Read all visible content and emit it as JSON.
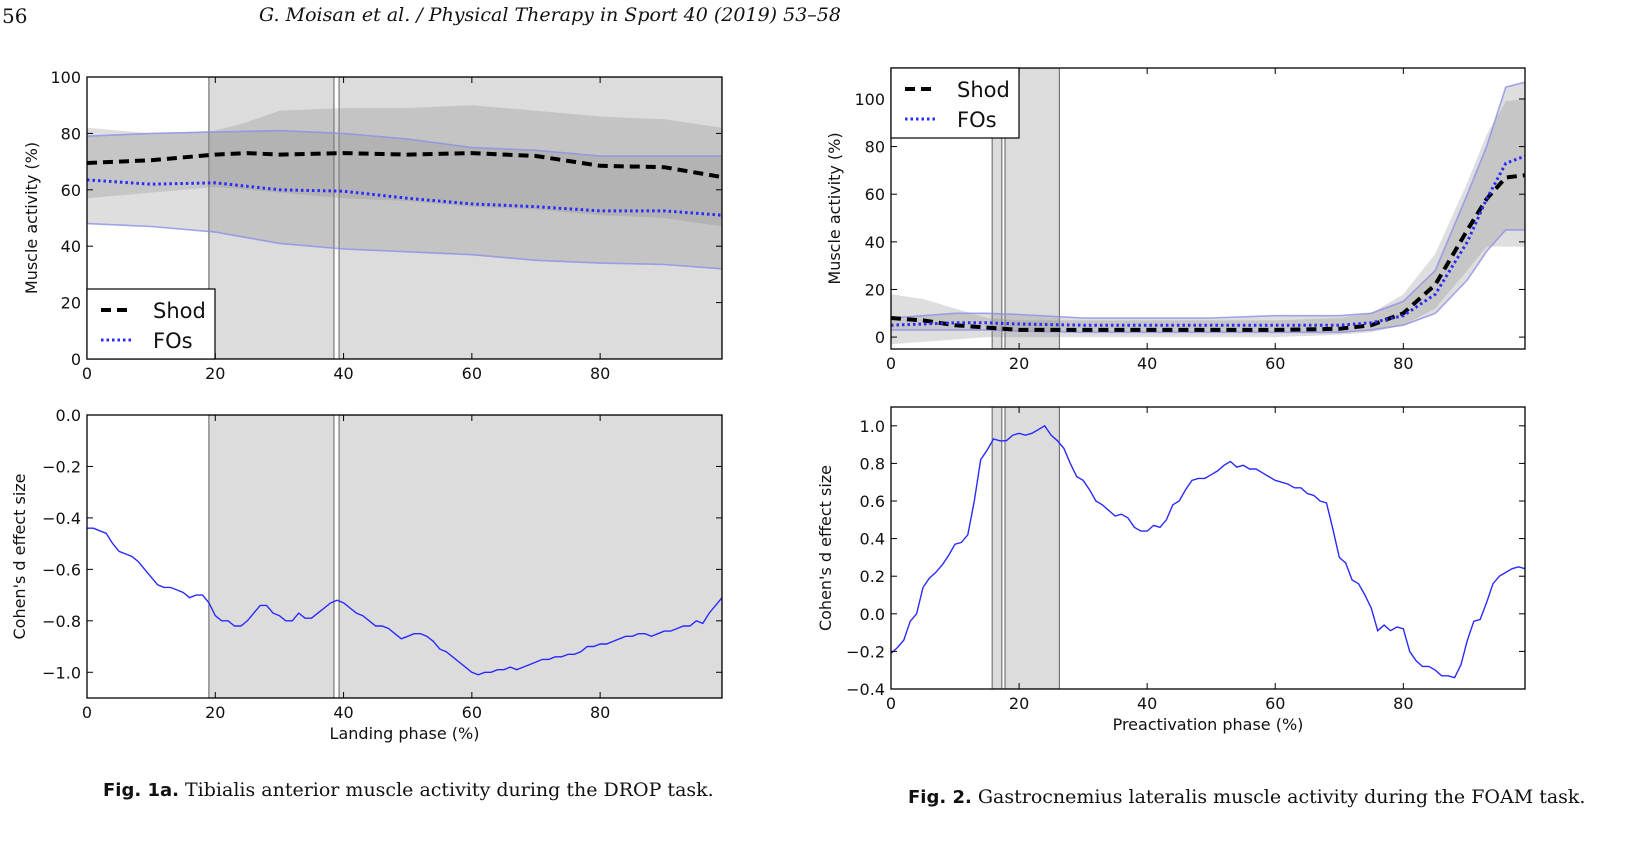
{
  "header": {
    "page_number": "56",
    "running_head": "G. Moisan et al. / Physical Therapy in Sport 40 (2019) 53–58"
  },
  "colors": {
    "shod": "#000000",
    "fos": "#2a2aff",
    "band": "#8a8a8a",
    "significance": "#9a9a9a"
  },
  "chart_data": [
    {
      "id": "fig1a-top",
      "type": "line",
      "ylabel": "Muscle activity (%)",
      "xlabel": "",
      "xlim": [
        0,
        99
      ],
      "ylim": [
        0,
        100
      ],
      "xticks": [
        0,
        20,
        40,
        60,
        80
      ],
      "yticks": [
        0,
        20,
        40,
        60,
        80,
        100
      ],
      "legend": {
        "position": "lower-left",
        "entries": [
          "Shod",
          "FOs"
        ]
      },
      "significance_regions": [
        [
          19,
          38.5
        ],
        [
          39.3,
          99
        ]
      ],
      "series": [
        {
          "name": "Shod",
          "style": "dashed",
          "x": [
            0,
            10,
            20,
            25,
            30,
            40,
            50,
            60,
            70,
            80,
            90,
            99
          ],
          "y": [
            69.5,
            70.5,
            72.5,
            73,
            72.5,
            73,
            72.5,
            73,
            72,
            68.5,
            68,
            64.5
          ],
          "lower": [
            57,
            59,
            61,
            60,
            59,
            57,
            56,
            54,
            53,
            51,
            50,
            47
          ],
          "upper": [
            82,
            80,
            81,
            84,
            88,
            89,
            89,
            90,
            88,
            86,
            85,
            82
          ]
        },
        {
          "name": "FOs",
          "style": "dotted",
          "x": [
            0,
            10,
            20,
            30,
            40,
            50,
            60,
            70,
            80,
            90,
            99
          ],
          "y": [
            63.5,
            62,
            62.5,
            60,
            59.5,
            57,
            55,
            54,
            52.5,
            52.5,
            51
          ],
          "lower": [
            48,
            47,
            45,
            41,
            39,
            38,
            37,
            35,
            34,
            33.5,
            32
          ],
          "upper": [
            79,
            80,
            80.5,
            81,
            80,
            78,
            75,
            74,
            72,
            72,
            72
          ]
        }
      ]
    },
    {
      "id": "fig1a-bottom",
      "type": "line",
      "ylabel": "Cohen's d effect size",
      "xlabel": "Landing phase (%)",
      "xlim": [
        0,
        99
      ],
      "ylim": [
        -1.1,
        0.0
      ],
      "xticks": [
        0,
        20,
        40,
        60,
        80
      ],
      "yticks": [
        0.0,
        -0.2,
        -0.4,
        -0.6,
        -0.8,
        -1.0
      ],
      "significance_regions": [
        [
          19,
          38.5
        ],
        [
          39.3,
          99
        ]
      ],
      "series": [
        {
          "name": "",
          "x": [
            0,
            1,
            2,
            3,
            4,
            5,
            6,
            7,
            8,
            9,
            10,
            11,
            12,
            13,
            14,
            15,
            16,
            17,
            18,
            19,
            20,
            21,
            22,
            23,
            24,
            25,
            26,
            27,
            28,
            29,
            30,
            31,
            32,
            33,
            34,
            35,
            36,
            37,
            38,
            39,
            40,
            41,
            42,
            43,
            44,
            45,
            46,
            47,
            48,
            49,
            50,
            51,
            52,
            53,
            54,
            55,
            56,
            57,
            58,
            59,
            60,
            61,
            62,
            63,
            64,
            65,
            66,
            67,
            68,
            69,
            70,
            71,
            72,
            73,
            74,
            75,
            76,
            77,
            78,
            79,
            80,
            81,
            82,
            83,
            84,
            85,
            86,
            87,
            88,
            89,
            90,
            91,
            92,
            93,
            94,
            95,
            96,
            97,
            98,
            99
          ],
          "y": [
            -0.44,
            -0.44,
            -0.45,
            -0.46,
            -0.5,
            -0.53,
            -0.54,
            -0.55,
            -0.57,
            -0.6,
            -0.63,
            -0.66,
            -0.67,
            -0.67,
            -0.68,
            -0.69,
            -0.71,
            -0.7,
            -0.7,
            -0.73,
            -0.78,
            -0.8,
            -0.8,
            -0.82,
            -0.82,
            -0.8,
            -0.77,
            -0.74,
            -0.74,
            -0.77,
            -0.78,
            -0.8,
            -0.8,
            -0.77,
            -0.79,
            -0.79,
            -0.77,
            -0.75,
            -0.73,
            -0.72,
            -0.73,
            -0.75,
            -0.77,
            -0.78,
            -0.8,
            -0.82,
            -0.82,
            -0.83,
            -0.85,
            -0.87,
            -0.86,
            -0.85,
            -0.85,
            -0.86,
            -0.88,
            -0.91,
            -0.92,
            -0.94,
            -0.96,
            -0.98,
            -1.0,
            -1.01,
            -1.0,
            -1.0,
            -0.99,
            -0.99,
            -0.98,
            -0.99,
            -0.98,
            -0.97,
            -0.96,
            -0.95,
            -0.95,
            -0.94,
            -0.94,
            -0.93,
            -0.93,
            -0.92,
            -0.9,
            -0.9,
            -0.89,
            -0.89,
            -0.88,
            -0.87,
            -0.86,
            -0.86,
            -0.85,
            -0.85,
            -0.86,
            -0.85,
            -0.84,
            -0.84,
            -0.83,
            -0.82,
            -0.82,
            -0.8,
            -0.81,
            -0.77,
            -0.74,
            -0.71
          ]
        }
      ]
    },
    {
      "id": "fig2-top",
      "type": "line",
      "ylabel": "Muscle activity (%)",
      "xlabel": "",
      "xlim": [
        0,
        99
      ],
      "ylim": [
        -5,
        113
      ],
      "xticks": [
        0,
        20,
        40,
        60,
        80
      ],
      "yticks": [
        0,
        20,
        40,
        60,
        80,
        100
      ],
      "legend": {
        "position": "top-left",
        "entries": [
          "Shod",
          "FOs"
        ]
      },
      "significance_regions": [
        [
          15.8,
          17.3
        ],
        [
          17.8,
          26.3
        ]
      ],
      "series": [
        {
          "name": "Shod",
          "style": "dashed",
          "x": [
            0,
            5,
            10,
            15,
            20,
            30,
            40,
            50,
            60,
            70,
            75,
            80,
            85,
            90,
            93,
            96,
            99
          ],
          "y": [
            8,
            7,
            5,
            4,
            3,
            3,
            3,
            3,
            3,
            3.5,
            5,
            10,
            22,
            45,
            58,
            67,
            68
          ],
          "lower": [
            -3,
            -2,
            -1,
            0,
            0,
            0,
            0,
            0,
            0,
            1,
            2,
            5,
            12,
            28,
            38,
            38,
            38
          ],
          "upper": [
            18,
            16,
            12,
            8,
            7,
            7,
            7,
            7,
            7,
            8,
            10,
            18,
            35,
            65,
            85,
            99,
            100
          ]
        },
        {
          "name": "FOs",
          "style": "dotted",
          "x": [
            0,
            5,
            10,
            15,
            20,
            30,
            40,
            50,
            60,
            70,
            75,
            80,
            85,
            90,
            93,
            96,
            99
          ],
          "y": [
            5,
            5.5,
            6,
            6,
            5.5,
            5,
            5,
            5,
            5,
            5,
            6,
            9,
            18,
            40,
            58,
            73,
            76
          ],
          "lower": [
            3,
            3,
            3,
            3,
            2.5,
            2,
            2,
            2,
            2,
            2,
            3,
            5,
            10,
            24,
            36,
            45,
            45
          ],
          "upper": [
            8,
            9,
            10,
            10,
            9.5,
            8,
            8,
            8,
            9,
            9,
            10,
            15,
            28,
            60,
            80,
            105,
            107
          ]
        }
      ]
    },
    {
      "id": "fig2-bottom",
      "type": "line",
      "ylabel": "Cohen's d effect size",
      "xlabel": "Preactivation phase (%)",
      "xlim": [
        0,
        99
      ],
      "ylim": [
        -0.4,
        1.1
      ],
      "xticks": [
        0,
        20,
        40,
        60,
        80
      ],
      "yticks": [
        1.0,
        0.8,
        0.6,
        0.4,
        0.2,
        0.0,
        -0.2,
        -0.4
      ],
      "significance_regions": [
        [
          15.8,
          17.3
        ],
        [
          17.8,
          26.3
        ]
      ],
      "series": [
        {
          "name": "",
          "x": [
            0,
            1,
            2,
            3,
            4,
            5,
            6,
            7,
            8,
            9,
            10,
            11,
            12,
            13,
            14,
            15,
            16,
            17,
            18,
            19,
            20,
            21,
            22,
            23,
            24,
            25,
            26,
            27,
            28,
            29,
            30,
            31,
            32,
            33,
            34,
            35,
            36,
            37,
            38,
            39,
            40,
            41,
            42,
            43,
            44,
            45,
            46,
            47,
            48,
            49,
            50,
            51,
            52,
            53,
            54,
            55,
            56,
            57,
            58,
            59,
            60,
            61,
            62,
            63,
            64,
            65,
            66,
            67,
            68,
            69,
            70,
            71,
            72,
            73,
            74,
            75,
            76,
            77,
            78,
            79,
            80,
            81,
            82,
            83,
            84,
            85,
            86,
            87,
            88,
            89,
            90,
            91,
            92,
            93,
            94,
            95,
            96,
            97,
            98,
            99
          ],
          "y": [
            -0.21,
            -0.18,
            -0.14,
            -0.04,
            0.0,
            0.14,
            0.19,
            0.22,
            0.26,
            0.31,
            0.37,
            0.38,
            0.42,
            0.6,
            0.82,
            0.87,
            0.93,
            0.92,
            0.92,
            0.95,
            0.96,
            0.95,
            0.96,
            0.98,
            1.0,
            0.95,
            0.92,
            0.88,
            0.8,
            0.73,
            0.71,
            0.66,
            0.6,
            0.58,
            0.55,
            0.52,
            0.53,
            0.51,
            0.46,
            0.44,
            0.44,
            0.47,
            0.46,
            0.5,
            0.58,
            0.6,
            0.66,
            0.71,
            0.72,
            0.72,
            0.74,
            0.76,
            0.79,
            0.81,
            0.78,
            0.79,
            0.77,
            0.77,
            0.75,
            0.73,
            0.71,
            0.7,
            0.69,
            0.67,
            0.67,
            0.64,
            0.63,
            0.6,
            0.59,
            0.45,
            0.3,
            0.27,
            0.18,
            0.16,
            0.1,
            0.03,
            -0.09,
            -0.06,
            -0.09,
            -0.07,
            -0.08,
            -0.2,
            -0.25,
            -0.28,
            -0.28,
            -0.3,
            -0.33,
            -0.33,
            -0.34,
            -0.27,
            -0.14,
            -0.04,
            -0.03,
            0.06,
            0.16,
            0.2,
            0.22,
            0.24,
            0.25,
            0.24
          ]
        }
      ]
    }
  ],
  "captions": [
    {
      "label": "Fig. 1a.",
      "text": " Tibialis anterior muscle activity during the DROP task."
    },
    {
      "label": "Fig. 2.",
      "text": " Gastrocnemius lateralis muscle activity during the FOAM task."
    }
  ]
}
